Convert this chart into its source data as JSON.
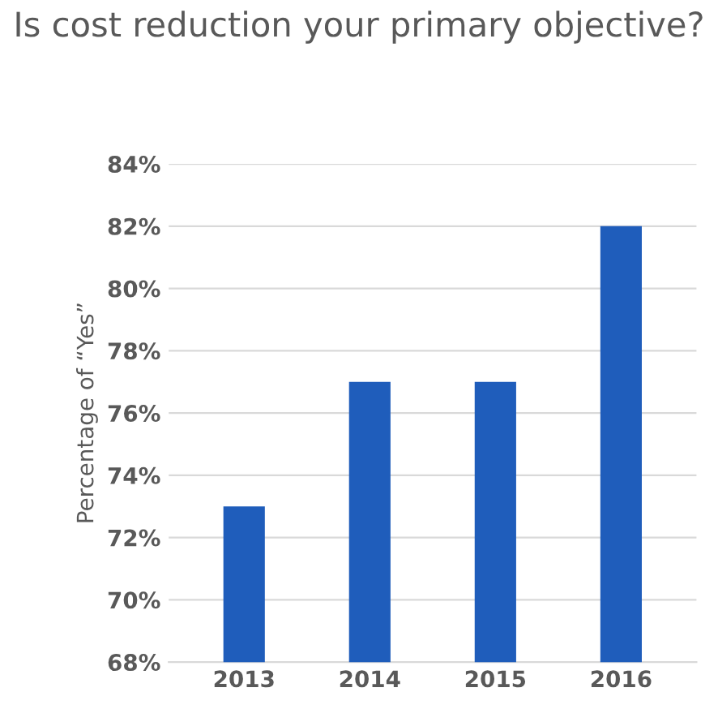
{
  "chart_data": {
    "type": "bar",
    "title": "Is cost reduction your primary objective?",
    "ylabel": "Percentage of “Yes”",
    "categories": [
      "2013",
      "2014",
      "2015",
      "2016"
    ],
    "values": [
      73,
      77,
      77,
      82
    ],
    "color": "#1f5dbb",
    "ylim": [
      68,
      84
    ],
    "yticks": [
      {
        "value": 68,
        "label": "68%"
      },
      {
        "value": 70,
        "label": "70%"
      },
      {
        "value": 72,
        "label": "72%"
      },
      {
        "value": 74,
        "label": "74%"
      },
      {
        "value": 76,
        "label": "76%"
      },
      {
        "value": 78,
        "label": "78%"
      },
      {
        "value": 80,
        "label": "80%"
      },
      {
        "value": 82,
        "label": "82%"
      },
      {
        "value": 84,
        "label": "84%"
      }
    ],
    "grid": "y"
  }
}
